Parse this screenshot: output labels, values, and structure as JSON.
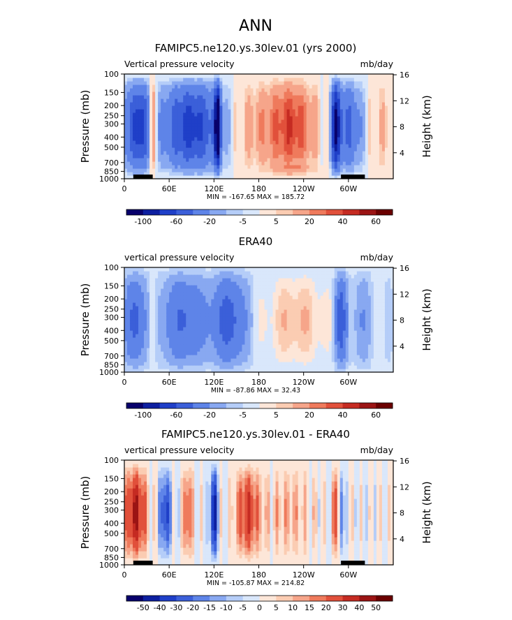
{
  "figure": {
    "title": "ANN"
  },
  "chart_data": [
    {
      "type": "heatmap",
      "title": "FAMIPC5.ne120.ys.30lev.01 (yrs 2000)",
      "left_label": "Vertical pressure velocity",
      "right_label": "mb/day",
      "ylabel": "Pressure (mb)",
      "ylabel_right": "Height (km)",
      "x_ticks": [
        "0",
        "60E",
        "120E",
        "180",
        "120W",
        "60W"
      ],
      "x_tick_lon": [
        0,
        60,
        120,
        180,
        240,
        300
      ],
      "xlim": [
        0,
        360
      ],
      "y_ticks": [
        "100",
        "150",
        "200",
        "250",
        "300",
        "400",
        "500",
        "700",
        "850",
        "1000"
      ],
      "y_tick_p": [
        100,
        150,
        200,
        250,
        300,
        400,
        500,
        700,
        850,
        1000
      ],
      "ylim": [
        1000,
        100
      ],
      "y_scale": "log",
      "y2_ticks": [
        "16",
        "12",
        "8",
        "4"
      ],
      "y2_tick_km": [
        16,
        12,
        8,
        4
      ],
      "stats": "MIN = -167.65   MAX = 185.72",
      "colorbar_ticks": [
        "-100",
        "-60",
        "-20",
        "-5",
        "5",
        "20",
        "40",
        "60"
      ],
      "colorbar_levels": [
        -100,
        -80,
        -60,
        -40,
        -20,
        -10,
        -5,
        0,
        5,
        10,
        20,
        30,
        40,
        50,
        60
      ],
      "colorbar_colors": [
        "#08006b",
        "#0d1fa0",
        "#1f3fc8",
        "#3b5fd9",
        "#5e84e8",
        "#88a8f1",
        "#b5cdf8",
        "#d9e7fb",
        "#fde6d8",
        "#fbccb2",
        "#f6a58a",
        "#ef7a5c",
        "#e1503b",
        "#c52b22",
        "#9b1414",
        "#6b0000"
      ],
      "plot_mode": "model",
      "has_topography": true
    },
    {
      "type": "heatmap",
      "title": "ERA40",
      "left_label": "vertical pressure velocity",
      "right_label": "mb/day",
      "ylabel": "Pressure (mb)",
      "ylabel_right": "Height (km)",
      "x_ticks": [
        "0",
        "60E",
        "120E",
        "180",
        "120W",
        "60W"
      ],
      "x_tick_lon": [
        0,
        60,
        120,
        180,
        240,
        300
      ],
      "xlim": [
        0,
        360
      ],
      "y_ticks": [
        "100",
        "150",
        "200",
        "250",
        "300",
        "400",
        "500",
        "700",
        "850",
        "1000"
      ],
      "y_tick_p": [
        100,
        150,
        200,
        250,
        300,
        400,
        500,
        700,
        850,
        1000
      ],
      "ylim": [
        1000,
        100
      ],
      "y_scale": "log",
      "y2_ticks": [
        "16",
        "12",
        "8",
        "4"
      ],
      "y2_tick_km": [
        16,
        12,
        8,
        4
      ],
      "stats": "MIN = -87.86   MAX = 32.43",
      "colorbar_ticks": [
        "-100",
        "-60",
        "-20",
        "-5",
        "5",
        "20",
        "40",
        "60"
      ],
      "colorbar_levels": [
        -100,
        -80,
        -60,
        -40,
        -20,
        -10,
        -5,
        0,
        5,
        10,
        20,
        30,
        40,
        50,
        60
      ],
      "colorbar_colors": [
        "#08006b",
        "#0d1fa0",
        "#1f3fc8",
        "#3b5fd9",
        "#5e84e8",
        "#88a8f1",
        "#b5cdf8",
        "#d9e7fb",
        "#fde6d8",
        "#fbccb2",
        "#f6a58a",
        "#ef7a5c",
        "#e1503b",
        "#c52b22",
        "#9b1414",
        "#6b0000"
      ],
      "plot_mode": "obs",
      "has_topography": false
    },
    {
      "type": "heatmap",
      "title": "FAMIPC5.ne120.ys.30lev.01 - ERA40",
      "left_label": "vertical pressure velocity",
      "right_label": "mb/day",
      "ylabel": "Pressure (mb)",
      "ylabel_right": "Height (km)",
      "x_ticks": [
        "0",
        "60E",
        "120E",
        "180",
        "120W",
        "60W"
      ],
      "x_tick_lon": [
        0,
        60,
        120,
        180,
        240,
        300
      ],
      "xlim": [
        0,
        360
      ],
      "y_ticks": [
        "100",
        "150",
        "200",
        "250",
        "300",
        "400",
        "500",
        "700",
        "850",
        "1000"
      ],
      "y_tick_p": [
        100,
        150,
        200,
        250,
        300,
        400,
        500,
        700,
        850,
        1000
      ],
      "ylim": [
        1000,
        100
      ],
      "y_scale": "log",
      "y2_ticks": [
        "16",
        "12",
        "8",
        "4"
      ],
      "y2_tick_km": [
        16,
        12,
        8,
        4
      ],
      "stats": "MIN = -105.87   MAX = 214.82",
      "colorbar_ticks": [
        "-50",
        "-40",
        "-30",
        "-20",
        "-15",
        "-10",
        "-5",
        "0",
        "5",
        "10",
        "15",
        "20",
        "30",
        "40",
        "50"
      ],
      "colorbar_levels": [
        -50,
        -40,
        -30,
        -20,
        -15,
        -10,
        -5,
        0,
        5,
        10,
        15,
        20,
        30,
        40,
        50
      ],
      "colorbar_colors": [
        "#08006b",
        "#0d1fa0",
        "#1f3fc8",
        "#3b5fd9",
        "#5e84e8",
        "#88a8f1",
        "#b5cdf8",
        "#d9e7fb",
        "#fde6d8",
        "#fbccb2",
        "#f6a58a",
        "#ef7a5c",
        "#e1503b",
        "#c52b22",
        "#9b1414",
        "#6b0000"
      ],
      "plot_mode": "diff",
      "has_topography": true
    }
  ]
}
